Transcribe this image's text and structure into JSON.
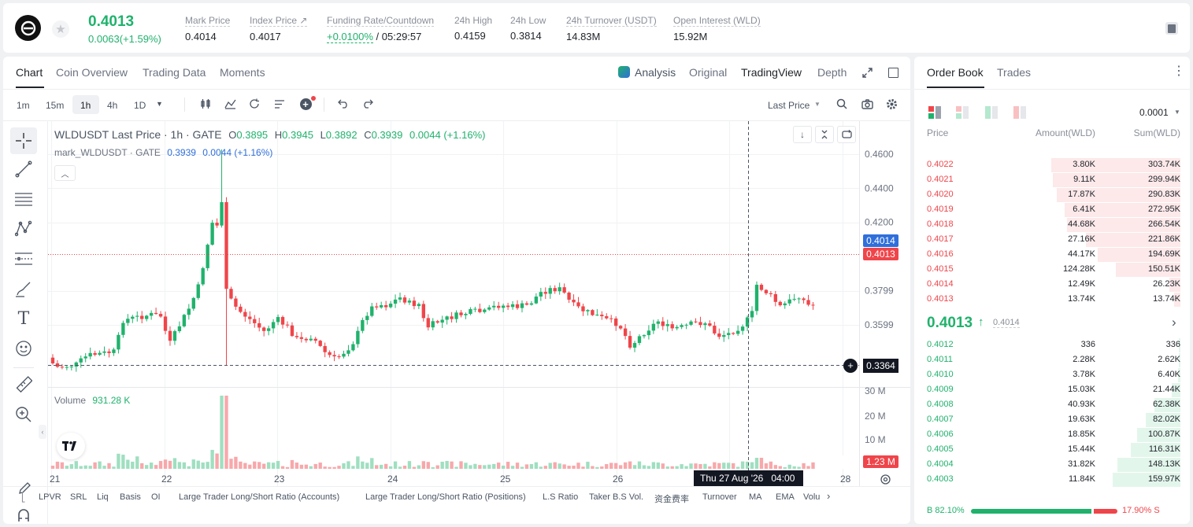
{
  "ticker": {
    "last_price": "0.4013",
    "change": "0.0063(+1.59%)",
    "stats": [
      {
        "label": "Mark Price",
        "value": "0.4014"
      },
      {
        "label": "Index Price ↗",
        "value": "0.4017"
      },
      {
        "label": "Funding Rate/Countdown",
        "value_green": "+0.0100%",
        "value": "/ 05:29:57"
      },
      {
        "label": "24h High",
        "value": "0.4159"
      },
      {
        "label": "24h Low",
        "value": "0.3814"
      },
      {
        "label": "24h Turnover (USDT)",
        "value": "14.83M"
      },
      {
        "label": "Open Interest (WLD)",
        "value": "15.92M"
      }
    ]
  },
  "chart_tabs": [
    "Chart",
    "Coin Overview",
    "Trading Data",
    "Moments"
  ],
  "view_tabs": [
    "Analysis",
    "Original",
    "TradingView",
    "Depth"
  ],
  "intervals": [
    "1m",
    "15m",
    "1h",
    "4h",
    "1D"
  ],
  "price_type": "Last Price",
  "legend": {
    "symbol": "WLDUSDT Last Price · 1h · GATE",
    "o_label": "O",
    "o": "0.3895",
    "h_label": "H",
    "h": "0.3945",
    "l_label": "L",
    "l": "0.3892",
    "c_label": "C",
    "c": "0.3939",
    "chg": "0.0044 (+1.16%)",
    "mark_name": "mark_WLDUSDT · GATE",
    "mark_val": "0.3939",
    "mark_chg": "0.0044 (+1.16%)"
  },
  "volume": {
    "label": "Volume",
    "value": "931.28 K"
  },
  "crosshair": {
    "price": "0.3364",
    "time": "Thu 27 Aug '26",
    "hour": "04:00"
  },
  "price_tags": {
    "mark": "0.4014",
    "last": "0.4013",
    "volume": "1.23 M"
  },
  "bottom_indicators": [
    "LPVR",
    "SRL",
    "Liq",
    "Basis",
    "OI",
    "Large Trader Long/Short Ratio (Accounts)",
    "Large Trader Long/Short Ratio (Positions)",
    "L.S Ratio",
    "Taker B.S Vol.",
    "资金费率",
    "Turnover",
    "MA",
    "EMA",
    "Volu"
  ],
  "colors": {
    "up": "#20b26c",
    "down": "#ef454a",
    "mark": "#2f6fdb"
  },
  "chart_data": {
    "type": "candlestick",
    "y_ticks": [
      "0.4600",
      "0.4400",
      "0.4200",
      "0.3799",
      "0.3599"
    ],
    "volume_ticks": [
      "30 M",
      "20 M",
      "10 M"
    ],
    "x_labels": [
      "21",
      "22",
      "23",
      "24",
      "25",
      "26",
      "28"
    ],
    "ylim": [
      0.3364,
      0.46
    ],
    "last": 0.4013,
    "mark": 0.4014
  },
  "orderbook": {
    "tabs": [
      "Order Book",
      "Trades"
    ],
    "precision": "0.0001",
    "headers": [
      "Price",
      "Amount(WLD)",
      "Sum(WLD)"
    ],
    "asks": [
      {
        "price": "0.4022",
        "amount": "3.80K",
        "sum": "303.74K",
        "depth": 0.304
      },
      {
        "price": "0.4021",
        "amount": "9.11K",
        "sum": "299.94K",
        "depth": 0.3
      },
      {
        "price": "0.4020",
        "amount": "17.87K",
        "sum": "290.83K",
        "depth": 0.291
      },
      {
        "price": "0.4019",
        "amount": "6.41K",
        "sum": "272.95K",
        "depth": 0.273
      },
      {
        "price": "0.4018",
        "amount": "44.68K",
        "sum": "266.54K",
        "depth": 0.267
      },
      {
        "price": "0.4017",
        "amount": "27.16K",
        "sum": "221.86K",
        "depth": 0.222
      },
      {
        "price": "0.4016",
        "amount": "44.17K",
        "sum": "194.69K",
        "depth": 0.195
      },
      {
        "price": "0.4015",
        "amount": "124.28K",
        "sum": "150.51K",
        "depth": 0.151
      },
      {
        "price": "0.4014",
        "amount": "12.49K",
        "sum": "26.23K",
        "depth": 0.026
      },
      {
        "price": "0.4013",
        "amount": "13.74K",
        "sum": "13.74K",
        "depth": 0.014
      }
    ],
    "mid_price": "0.4013",
    "mid_mark": "0.4014",
    "bids": [
      {
        "price": "0.4012",
        "amount": "336",
        "sum": "336",
        "depth": 0.001
      },
      {
        "price": "0.4011",
        "amount": "2.28K",
        "sum": "2.62K",
        "depth": 0.003
      },
      {
        "price": "0.4010",
        "amount": "3.78K",
        "sum": "6.40K",
        "depth": 0.006
      },
      {
        "price": "0.4009",
        "amount": "15.03K",
        "sum": "21.44K",
        "depth": 0.021
      },
      {
        "price": "0.4008",
        "amount": "40.93K",
        "sum": "62.38K",
        "depth": 0.062
      },
      {
        "price": "0.4007",
        "amount": "19.63K",
        "sum": "82.02K",
        "depth": 0.082
      },
      {
        "price": "0.4006",
        "amount": "18.85K",
        "sum": "100.87K",
        "depth": 0.101
      },
      {
        "price": "0.4005",
        "amount": "15.44K",
        "sum": "116.31K",
        "depth": 0.116
      },
      {
        "price": "0.4004",
        "amount": "31.82K",
        "sum": "148.13K",
        "depth": 0.148
      },
      {
        "price": "0.4003",
        "amount": "11.84K",
        "sum": "159.97K",
        "depth": 0.16
      }
    ],
    "buy_label": "B",
    "buy_pct": "82.10%",
    "buy_ratio": 0.821,
    "sell_label": "S",
    "sell_pct": "17.90%"
  }
}
